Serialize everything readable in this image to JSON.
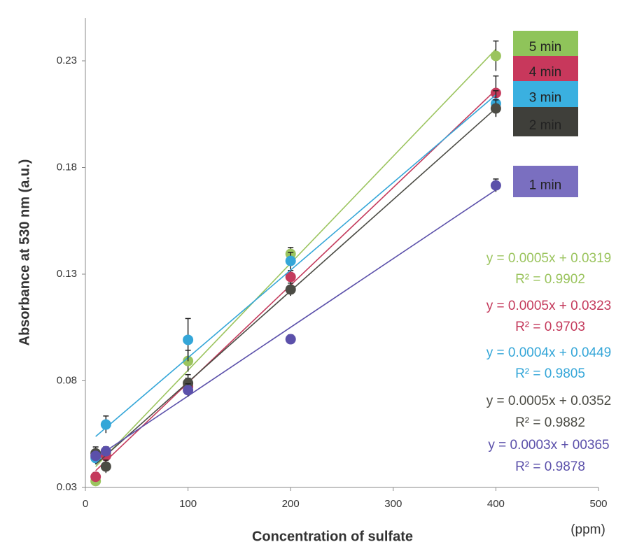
{
  "chart_data": {
    "type": "scatter",
    "y_label": "Absorbance at 530 nm   (a.u.)",
    "x_label": "Concentration of sulfate",
    "x_unit": "(ppm)",
    "xlim": [
      0,
      500
    ],
    "xticks": [
      0,
      100,
      200,
      300,
      400,
      500
    ],
    "ylim": [
      0.03,
      0.25
    ],
    "yticks": [
      0.03,
      0.08,
      0.13,
      0.18,
      0.23
    ],
    "trendline": true,
    "series": [
      {
        "name": "5 min",
        "color": "#9bc45e",
        "legend_color": "#8fc45a",
        "x": [
          10,
          20,
          100,
          200,
          400
        ],
        "values": [
          0.033,
          0.046,
          0.0893,
          0.1395,
          0.2323
        ],
        "errors": [
          0.002,
          0.003,
          0.005,
          0.003,
          0.007
        ],
        "equation": "y = 0.0005x + 0.0319",
        "r2": "R² = 0.9902"
      },
      {
        "name": "4 min",
        "color": "#c43a5c",
        "legend_color": "#c8385c",
        "x": [
          10,
          20,
          100,
          200,
          400
        ],
        "values": [
          0.035,
          0.0448,
          0.0772,
          0.1287,
          0.2149
        ],
        "errors": [
          0.002,
          0.003,
          0.004,
          0.003,
          0.008
        ],
        "equation": "y = 0.0005x + 0.0323",
        "r2": "R² = 0.9703"
      },
      {
        "name": "3 min",
        "color": "#34a6d8",
        "legend_color": "#3ab0e0",
        "x": [
          10,
          20,
          100,
          200,
          400
        ],
        "values": [
          0.0438,
          0.0595,
          0.0992,
          0.1362,
          0.21
        ],
        "errors": [
          0.003,
          0.004,
          0.01,
          0.004,
          0.006
        ],
        "equation": "y = 0.0004x + 0.0449",
        "r2": "R² = 0.9805"
      },
      {
        "name": "2 min",
        "color": "#4b4b44",
        "legend_color": "#3f3f3a",
        "x": [
          10,
          20,
          100,
          200,
          400
        ],
        "values": [
          0.046,
          0.0398,
          0.0789,
          0.1228,
          0.2077
        ],
        "errors": [
          0.003,
          0.003,
          0.004,
          0.003,
          0.004
        ],
        "equation": "y = 0.0005x + 0.0352",
        "r2": "R² = 0.9882"
      },
      {
        "name": "1 min",
        "color": "#5b50aa",
        "legend_color": "#7a6fc0",
        "x": [
          10,
          20,
          100,
          200,
          400
        ],
        "values": [
          0.0448,
          0.047,
          0.0756,
          0.0995,
          0.1716
        ],
        "errors": [
          0.002,
          0.002,
          0.003,
          0.002,
          0.003
        ],
        "equation": "y = 0.0003x + 00365",
        "r2": "R² = 0.9878"
      }
    ]
  }
}
